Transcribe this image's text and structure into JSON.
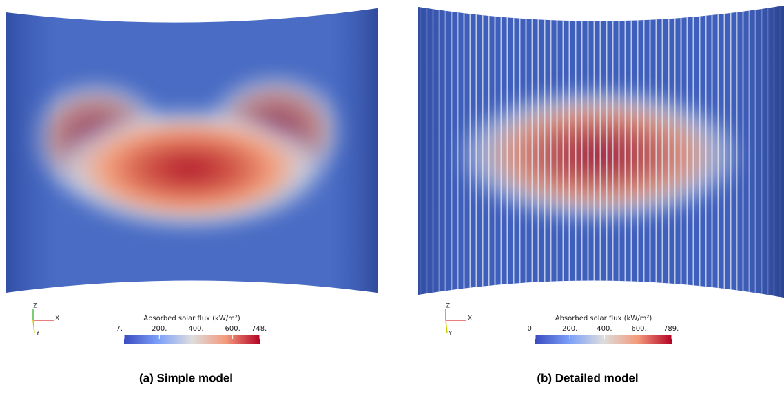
{
  "panels": [
    {
      "caption": "(a) Simple model",
      "axes": {
        "z": "Z",
        "x": "X",
        "y": "Y"
      },
      "colorbar": {
        "title": "Absorbed solar flux (kW/m²)",
        "range": [
          7,
          748
        ],
        "ticks": [
          {
            "value": 7,
            "label": "7."
          },
          {
            "value": 200,
            "label": "200."
          },
          {
            "value": 400,
            "label": "400."
          },
          {
            "value": 600,
            "label": "600."
          },
          {
            "value": 748,
            "label": "748."
          }
        ]
      }
    },
    {
      "caption": "(b) Detailed model",
      "axes": {
        "z": "Z",
        "x": "X",
        "y": "Y"
      },
      "colorbar": {
        "title": "Absorbed solar flux (kW/m²)",
        "range": [
          0,
          789
        ],
        "ticks": [
          {
            "value": 0,
            "label": "0."
          },
          {
            "value": 200,
            "label": "200."
          },
          {
            "value": 400,
            "label": "400."
          },
          {
            "value": 600,
            "label": "600."
          },
          {
            "value": 789,
            "label": "789."
          }
        ]
      }
    }
  ]
}
